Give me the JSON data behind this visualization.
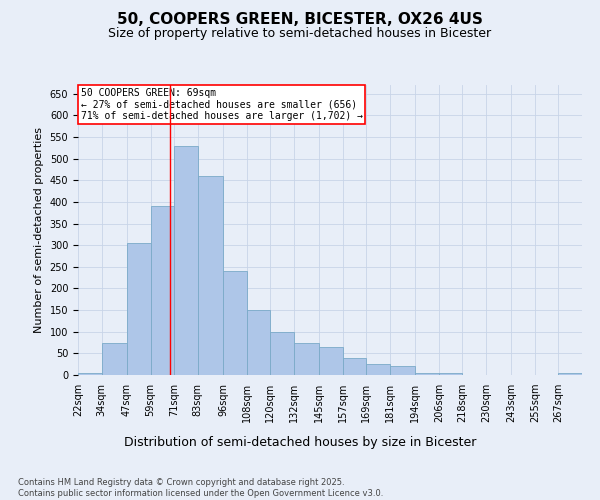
{
  "title1": "50, COOPERS GREEN, BICESTER, OX26 4US",
  "title2": "Size of property relative to semi-detached houses in Bicester",
  "xlabel": "Distribution of semi-detached houses by size in Bicester",
  "ylabel": "Number of semi-detached properties",
  "bins": [
    "22sqm",
    "34sqm",
    "47sqm",
    "59sqm",
    "71sqm",
    "83sqm",
    "96sqm",
    "108sqm",
    "120sqm",
    "132sqm",
    "145sqm",
    "157sqm",
    "169sqm",
    "181sqm",
    "194sqm",
    "206sqm",
    "218sqm",
    "230sqm",
    "243sqm",
    "255sqm",
    "267sqm"
  ],
  "bin_edges": [
    22,
    34,
    47,
    59,
    71,
    83,
    96,
    108,
    120,
    132,
    145,
    157,
    169,
    181,
    194,
    206,
    218,
    230,
    243,
    255,
    267,
    279
  ],
  "values": [
    5,
    75,
    305,
    390,
    530,
    460,
    240,
    150,
    100,
    75,
    65,
    40,
    25,
    20,
    5,
    5,
    0,
    0,
    0,
    0,
    5
  ],
  "bar_color": "#AEC6E8",
  "bar_edge_color": "#7AAAC8",
  "grid_color": "#C8D4E8",
  "background_color": "#E8EEF8",
  "property_line_x": 69,
  "annotation_text": "50 COOPERS GREEN: 69sqm\n← 27% of semi-detached houses are smaller (656)\n71% of semi-detached houses are larger (1,702) →",
  "annotation_box_color": "white",
  "annotation_box_edge": "red",
  "property_line_color": "red",
  "ylim": [
    0,
    670
  ],
  "yticks": [
    0,
    50,
    100,
    150,
    200,
    250,
    300,
    350,
    400,
    450,
    500,
    550,
    600,
    650
  ],
  "footnote": "Contains HM Land Registry data © Crown copyright and database right 2025.\nContains public sector information licensed under the Open Government Licence v3.0.",
  "title1_fontsize": 11,
  "title2_fontsize": 9,
  "xlabel_fontsize": 9,
  "ylabel_fontsize": 8,
  "tick_fontsize": 7,
  "footnote_fontsize": 6
}
